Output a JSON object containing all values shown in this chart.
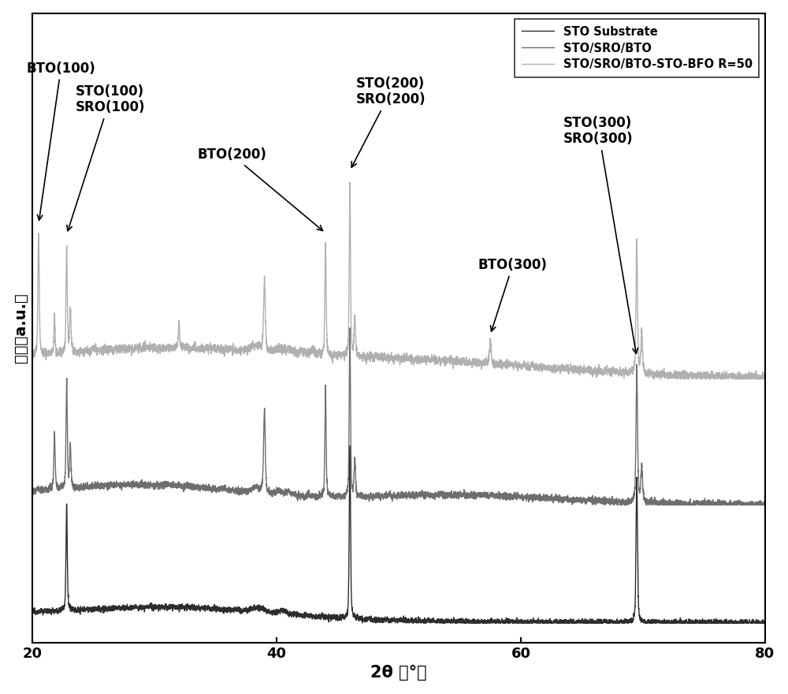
{
  "title": "",
  "xlabel": "2θ （°）",
  "ylabel": "强度（a.u.）",
  "xlim": [
    20,
    80
  ],
  "ylim": [
    -0.05,
    1.55
  ],
  "x_ticks": [
    20,
    40,
    60,
    80
  ],
  "legend_labels": [
    "STO Substrate",
    "STO/SRO/BTO",
    "STO/SRO/BTO-STO-BFO R=50"
  ],
  "line_colors": [
    "#2d2d2d",
    "#6e6e6e",
    "#b0b0b0"
  ],
  "background_color": "#ffffff",
  "offsets": [
    0.0,
    0.3,
    0.62
  ]
}
